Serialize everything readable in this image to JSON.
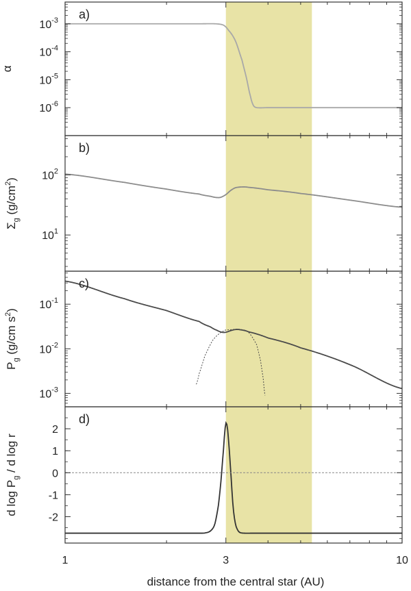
{
  "figure": {
    "x_axis": {
      "label": "distance from the central star (AU)",
      "scale": "log",
      "range": [
        1,
        10
      ],
      "ticks": [
        "1",
        "3",
        "10"
      ],
      "tick_values": [
        1,
        3,
        10
      ]
    },
    "shaded_region": {
      "x_range": [
        3.0,
        5.4
      ],
      "color": "#e8e3a6"
    }
  },
  "chart_data": [
    {
      "panel": "a)",
      "type": "line",
      "ylabel": "α",
      "yscale": "log",
      "ylim": [
        1e-07,
        0.006
      ],
      "y_ticks": [
        {
          "value": 0.001,
          "base": "10",
          "exp": "-3"
        },
        {
          "value": 0.0001,
          "base": "10",
          "exp": "-4"
        },
        {
          "value": 1e-05,
          "base": "10",
          "exp": "-5"
        },
        {
          "value": 1e-06,
          "base": "10",
          "exp": "-6"
        }
      ],
      "series": [
        {
          "color": "#a8a8a8",
          "style": "solid",
          "x": [
            1.0,
            2.5,
            2.8,
            2.95,
            3.05,
            3.2,
            3.35,
            3.45,
            3.55,
            3.62,
            3.7,
            4.0,
            6.0,
            10.0
          ],
          "y": [
            0.001,
            0.001,
            0.001,
            0.0009,
            0.0006,
            0.00025,
            5e-05,
            1.2e-05,
            2.5e-06,
            1.2e-06,
            1e-06,
            1e-06,
            1e-06,
            1e-06
          ]
        }
      ]
    },
    {
      "panel": "b)",
      "type": "line",
      "ylabel": "Σ_g (g/cm^2)",
      "yscale": "log",
      "ylim": [
        2.5,
        450
      ],
      "y_ticks": [
        {
          "value": 100,
          "base": "10",
          "exp": "2"
        },
        {
          "value": 10,
          "base": "10",
          "exp": "1"
        }
      ],
      "series": [
        {
          "color": "#8c8c8c",
          "style": "solid",
          "x": [
            1.0,
            1.5,
            2.0,
            2.5,
            2.7,
            2.82,
            2.9,
            3.0,
            3.1,
            3.2,
            3.35,
            3.5,
            4.0,
            5.0,
            7.0,
            10.0
          ],
          "y": [
            103,
            75,
            58,
            48,
            44,
            42,
            42.5,
            47,
            55,
            61,
            63,
            62,
            56.5,
            49,
            38,
            29
          ]
        }
      ]
    },
    {
      "panel": "c)",
      "type": "line",
      "ylabel": "P_g (g/cm s^2)",
      "yscale": "log",
      "ylim": [
        0.0005,
        0.55
      ],
      "y_ticks": [
        {
          "value": 0.1,
          "base": "10",
          "exp": "-1"
        },
        {
          "value": 0.01,
          "base": "10",
          "exp": "-2"
        },
        {
          "value": 0.001,
          "base": "10",
          "exp": "-3"
        }
      ],
      "series": [
        {
          "color": "#4a4a4a",
          "style": "solid",
          "x": [
            1.0,
            1.5,
            2.0,
            2.5,
            2.7,
            2.82,
            2.92,
            3.0,
            3.1,
            3.2,
            3.3,
            3.5,
            4.0,
            5.0,
            7.0,
            10.0
          ],
          "y": [
            0.33,
            0.133,
            0.072,
            0.041,
            0.031,
            0.026,
            0.0235,
            0.0235,
            0.0255,
            0.027,
            0.0268,
            0.024,
            0.0175,
            0.0105,
            0.0044,
            0.00128
          ]
        },
        {
          "color": "#4a4a4a",
          "style": "dotted",
          "x": [
            2.45,
            2.5,
            2.6,
            2.75,
            2.95,
            3.1,
            3.3,
            3.5,
            3.7,
            3.8,
            3.87,
            3.92
          ],
          "y": [
            0.0016,
            0.0028,
            0.007,
            0.016,
            0.025,
            0.0268,
            0.0272,
            0.0235,
            0.0125,
            0.0055,
            0.0022,
            0.0009
          ]
        }
      ]
    },
    {
      "panel": "d)",
      "type": "line",
      "ylabel": "d log P_g / d log r",
      "yscale": "linear",
      "ylim": [
        -3.2,
        3.0
      ],
      "y_ticks": [
        {
          "value": 2,
          "label": "2"
        },
        {
          "value": 1,
          "label": "1"
        },
        {
          "value": 0,
          "label": "0"
        },
        {
          "value": -1,
          "label": "-1"
        },
        {
          "value": -2,
          "label": "-2"
        }
      ],
      "series": [
        {
          "color": "#333333",
          "style": "solid",
          "x": [
            1.0,
            2.5,
            2.6,
            2.7,
            2.78,
            2.85,
            2.9,
            2.95,
            2.98,
            3.0,
            3.02,
            3.05,
            3.1,
            3.15,
            3.2,
            3.25,
            3.3,
            3.4,
            3.6,
            10.0
          ],
          "y": [
            -2.75,
            -2.75,
            -2.74,
            -2.65,
            -2.35,
            -1.5,
            -0.4,
            1.0,
            1.9,
            2.25,
            2.2,
            1.6,
            0.1,
            -1.5,
            -2.3,
            -2.6,
            -2.72,
            -2.75,
            -2.75,
            -2.75
          ]
        },
        {
          "color": "#888888",
          "style": "dashed",
          "x": [
            1.0,
            10.0
          ],
          "y": [
            0,
            0
          ]
        }
      ]
    }
  ]
}
